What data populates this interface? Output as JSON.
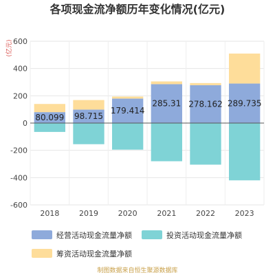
{
  "chart_data": {
    "type": "bar",
    "stacked": true,
    "title": "各项现金流净额历年变化情况(亿元)",
    "unit_label": "(亿元)",
    "categories": [
      "2018",
      "2019",
      "2020",
      "2021",
      "2022",
      "2023"
    ],
    "ylim": [
      -600,
      600
    ],
    "yticks": [
      -600,
      -400,
      -200,
      0,
      200,
      400,
      600
    ],
    "grid": true,
    "legend_position": "bottom",
    "series": [
      {
        "name": "经营活动现金流量净额",
        "color": "#8eaadb",
        "values": [
          80.099,
          98.715,
          179.414,
          285.31,
          278.162,
          289.735
        ],
        "labels": [
          "80.099",
          "98.715",
          "179.414",
          "285.31",
          "278.162",
          "289.735"
        ]
      },
      {
        "name": "投资活动现金流量净额",
        "color": "#7fd3d6",
        "values": [
          -65,
          -155,
          -195,
          -280,
          -305,
          -420
        ]
      },
      {
        "name": "筹资活动现金流量净额",
        "color": "#fedd9a",
        "values": [
          60,
          70,
          15,
          20,
          15,
          220
        ]
      }
    ],
    "source": "制图数据来自恒生聚源数据库"
  }
}
